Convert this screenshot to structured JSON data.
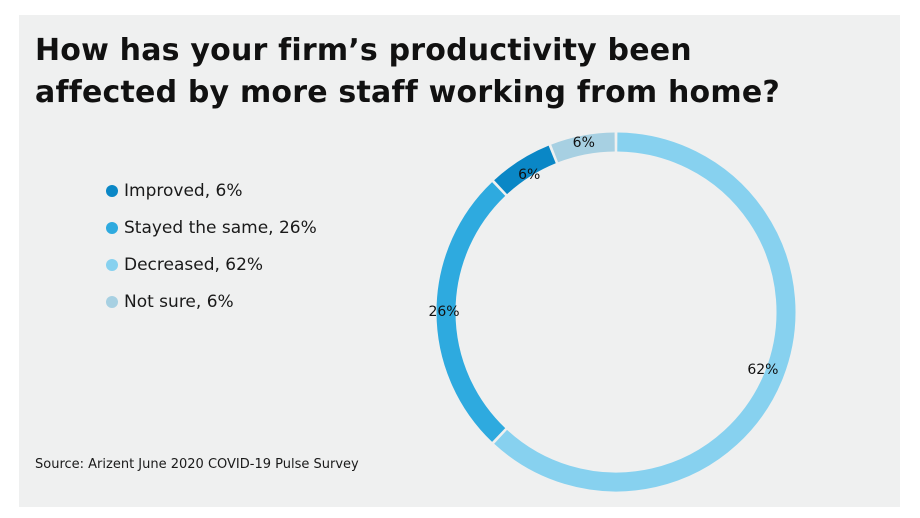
{
  "chart_data": {
    "type": "pie",
    "title": "How has your firm’s productivity been affected by more staff working from home?",
    "categories": [
      "Improved",
      "Stayed the same",
      "Decreased",
      "Not sure"
    ],
    "values": [
      6,
      26,
      62,
      6
    ],
    "unit": "%",
    "colors": [
      "#0a87c6",
      "#2eaadf",
      "#87d1ef",
      "#a7d0e2"
    ],
    "legend": [
      "Improved, 6%",
      "Stayed the same, 26%",
      "Decreased, 62%",
      "Not sure, 6%"
    ],
    "slice_labels": [
      "6%",
      "26%",
      "62%",
      "6%"
    ],
    "legend_position": "left",
    "source": "Source: Arizent June 2020 COVID-19 Pulse Survey"
  }
}
